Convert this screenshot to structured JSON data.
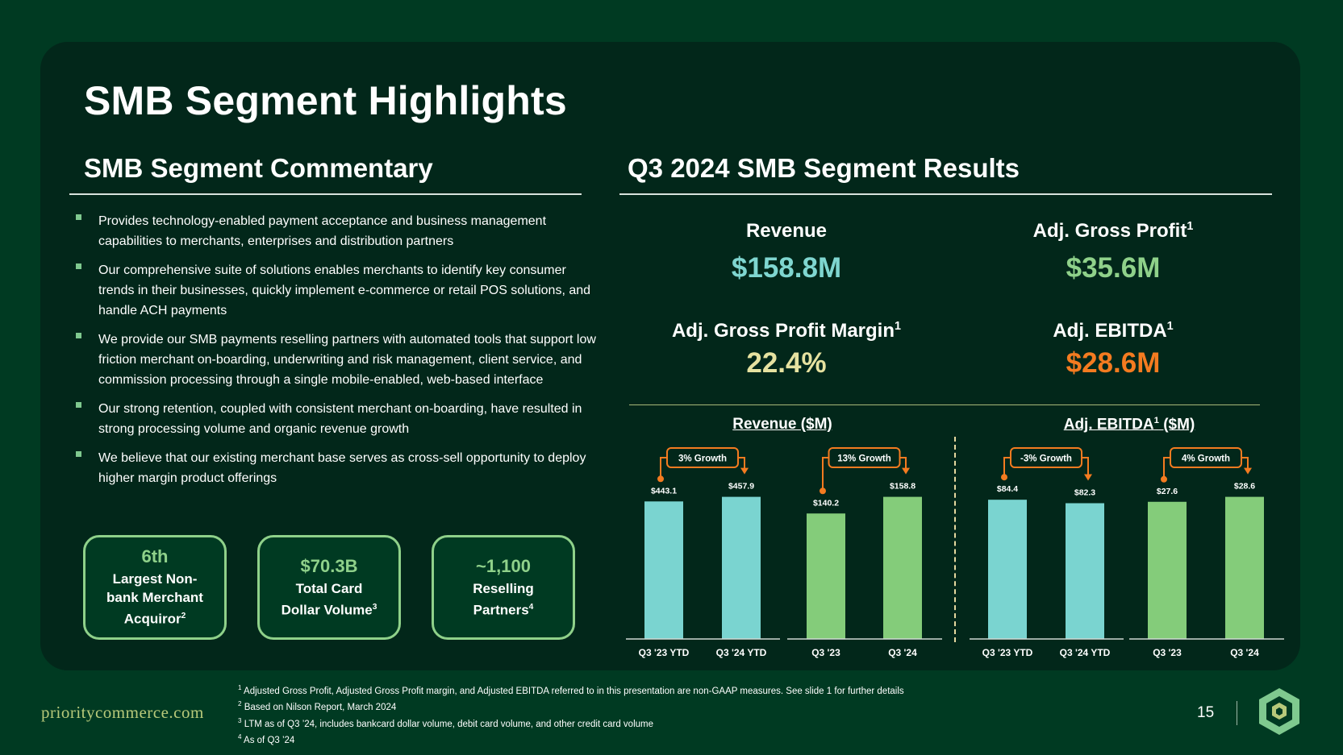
{
  "slide": {
    "title": "SMB Segment Highlights",
    "page_number": "15",
    "site_url": "prioritycommerce.com"
  },
  "commentary": {
    "heading": "SMB Segment Commentary",
    "bullets": [
      "Provides technology-enabled payment acceptance and business management capabilities to merchants, enterprises and distribution partners",
      "Our comprehensive suite of solutions enables merchants to identify key consumer trends in their businesses, quickly implement e-commerce or retail POS solutions, and handle ACH payments",
      "We provide our SMB payments reselling partners with automated tools that support low friction merchant on-boarding, underwriting and risk management, client service, and commission processing through a single mobile-enabled, web-based interface",
      "Our strong retention, coupled with consistent merchant on-boarding, have resulted in strong processing volume and organic revenue growth",
      "We believe that our existing merchant base serves as cross-sell opportunity to deploy higher margin product offerings"
    ]
  },
  "stat_boxes": [
    {
      "value": "6th",
      "label_lines": [
        "Largest Non-",
        "bank Merchant",
        "Acquiror"
      ],
      "footnote": "2"
    },
    {
      "value": "$70.3B",
      "label_lines": [
        "Total Card",
        "Dollar Volume"
      ],
      "footnote": "3"
    },
    {
      "value": "~1,100",
      "label_lines": [
        "Reselling",
        "Partners"
      ],
      "footnote": "4"
    }
  ],
  "results": {
    "heading": "Q3 2024 SMB Segment Results",
    "kpis": [
      {
        "title": "Revenue",
        "footnote": "",
        "value": "$158.8M",
        "color": "#7fd6d0"
      },
      {
        "title": "Adj. Gross Profit",
        "footnote": "1",
        "value": "$35.6M",
        "color": "#8fd18a"
      },
      {
        "title": "Adj. Gross Profit Margin",
        "footnote": "1",
        "value": "22.4%",
        "color": "#e6e2a0"
      },
      {
        "title": "Adj. EBITDA",
        "footnote": "1",
        "value": "$28.6M",
        "color": "#f47b20"
      }
    ]
  },
  "colors": {
    "teal": "#7ad4d0",
    "green": "#84cc7a",
    "orange": "#f47b20",
    "axis": "#cfd8d3"
  },
  "chart_data": [
    {
      "type": "bar",
      "title": "Revenue ($M)",
      "title_footnote": "",
      "ylim": [
        0,
        500
      ],
      "groups": [
        {
          "categories": [
            "Q3 '23 YTD",
            "Q3 '24 YTD"
          ],
          "values": [
            443.1,
            457.9
          ],
          "labels": [
            "$443.1",
            "$457.9"
          ],
          "color": "teal",
          "growth": "3% Growth"
        },
        {
          "categories": [
            "Q3 '23",
            "Q3 '24"
          ],
          "values": [
            140.2,
            158.8
          ],
          "labels": [
            "$140.2",
            "$158.8"
          ],
          "color": "green",
          "growth": "13% Growth"
        }
      ]
    },
    {
      "type": "bar",
      "title": "Adj. EBITDA",
      "title_footnote": "1",
      "title_suffix": " ($M)",
      "ylim": [
        0,
        500
      ],
      "groups": [
        {
          "categories": [
            "Q3 '23 YTD",
            "Q3 '24 YTD"
          ],
          "values": [
            84.4,
            82.3
          ],
          "labels": [
            "$84.4",
            "$82.3"
          ],
          "color": "teal",
          "growth": "-3% Growth"
        },
        {
          "categories": [
            "Q3 '23",
            "Q3 '24"
          ],
          "values": [
            27.6,
            28.6
          ],
          "labels": [
            "$27.6",
            "$28.6"
          ],
          "color": "green",
          "growth": "4% Growth"
        }
      ]
    }
  ],
  "footnotes": [
    {
      "num": "1",
      "text": "Adjusted Gross Profit, Adjusted Gross Profit margin, and Adjusted EBITDA referred to in this presentation are non-GAAP measures. See slide 1 for further details"
    },
    {
      "num": "2",
      "text": "Based on Nilson Report, March 2024"
    },
    {
      "num": "3",
      "text": "LTM as of Q3 ’24, includes bankcard dollar volume, debit card volume, and other credit card volume"
    },
    {
      "num": "4",
      "text": "As of Q3 ’24"
    }
  ]
}
